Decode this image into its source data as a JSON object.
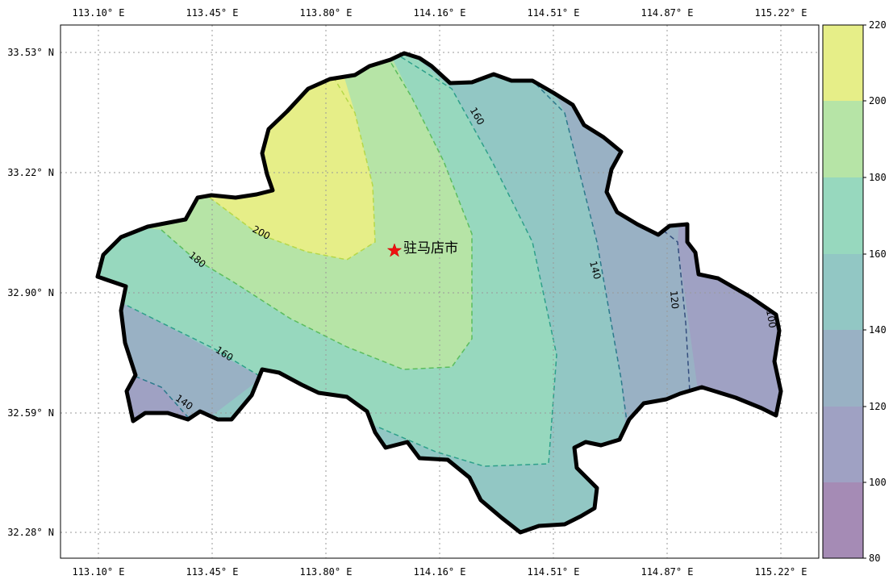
{
  "map": {
    "city_label": "驻马店市",
    "lon_ticks": [
      "113.10° E",
      "113.45° E",
      "113.80° E",
      "114.16° E",
      "114.51° E",
      "114.87° E",
      "115.22° E"
    ],
    "lat_ticks": [
      "33.53° N",
      "33.22° N",
      "32.90° N",
      "32.59° N",
      "32.28° N"
    ],
    "contour_labels": [
      "200",
      "180",
      "160",
      "160",
      "140",
      "140",
      "120",
      "100"
    ],
    "colorbar": {
      "levels": [
        "80",
        "100",
        "120",
        "140",
        "160",
        "180",
        "200",
        "220"
      ],
      "colors": [
        "#a58bb5",
        "#9fa1c3",
        "#99b1c4",
        "#92c7c4",
        "#97d8be",
        "#b6e4a6",
        "#e6ee88"
      ]
    },
    "grid": "dotted",
    "marker": {
      "symbol": "star",
      "color": "#ee1111"
    }
  }
}
